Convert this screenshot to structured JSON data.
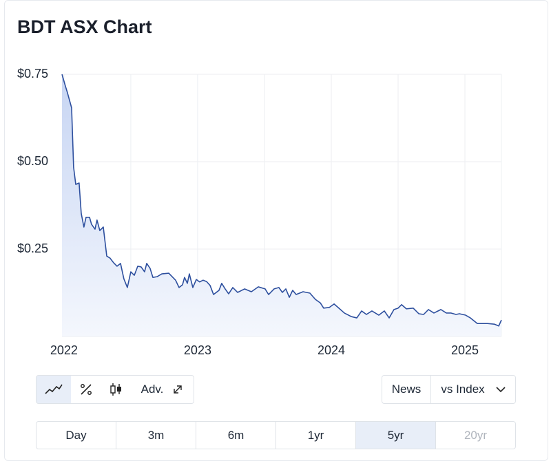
{
  "chart_data": {
    "type": "line",
    "title": "BDT ASX Chart",
    "x": [
      2021.985,
      2022.01,
      2022.026,
      2022.057,
      2022.072,
      2022.088,
      2022.113,
      2022.129,
      2022.149,
      2022.165,
      2022.191,
      2022.206,
      2022.232,
      2022.247,
      2022.268,
      2022.294,
      2022.32,
      2022.345,
      2022.371,
      2022.397,
      2022.423,
      2022.448,
      2022.474,
      2022.5,
      2022.526,
      2022.552,
      2022.577,
      2022.603,
      2022.619,
      2022.644,
      2022.665,
      2022.696,
      2022.732,
      2022.784,
      2022.835,
      2022.861,
      2022.887,
      2022.902,
      2022.923,
      2022.938,
      2022.964,
      2022.99,
      2023.015,
      2023.041,
      2023.067,
      2023.093,
      2023.119,
      2023.16,
      2023.18,
      2023.206,
      2023.232,
      2023.263,
      2023.299,
      2023.351,
      2023.402,
      2023.454,
      2023.505,
      2023.531,
      2023.572,
      2023.608,
      2023.634,
      2023.66,
      2023.686,
      2023.711,
      2023.737,
      2023.789,
      2023.84,
      2023.881,
      2023.918,
      2023.943,
      2023.985,
      2024.021,
      2024.057,
      2024.098,
      2024.149,
      2024.191,
      2024.227,
      2024.263,
      2024.304,
      2024.356,
      2024.397,
      2024.433,
      2024.469,
      2024.5,
      2024.526,
      2024.562,
      2024.613,
      2024.655,
      2024.691,
      2024.727,
      2024.768,
      2024.82,
      2024.861,
      2024.897,
      2024.933,
      2024.959,
      2025.005,
      2025.041,
      2025.093,
      2025.17,
      2025.222,
      2025.253,
      2025.273
    ],
    "values": [
      0.75,
      0.717,
      0.697,
      0.654,
      0.484,
      0.435,
      0.439,
      0.352,
      0.313,
      0.341,
      0.341,
      0.321,
      0.307,
      0.333,
      0.303,
      0.313,
      0.23,
      0.224,
      0.211,
      0.201,
      0.209,
      0.165,
      0.14,
      0.185,
      0.175,
      0.201,
      0.199,
      0.185,
      0.209,
      0.195,
      0.169,
      0.171,
      0.179,
      0.181,
      0.161,
      0.14,
      0.148,
      0.169,
      0.152,
      0.179,
      0.14,
      0.163,
      0.156,
      0.161,
      0.157,
      0.146,
      0.12,
      0.132,
      0.152,
      0.136,
      0.122,
      0.14,
      0.126,
      0.136,
      0.128,
      0.142,
      0.136,
      0.12,
      0.136,
      0.14,
      0.126,
      0.136,
      0.112,
      0.132,
      0.12,
      0.128,
      0.124,
      0.106,
      0.096,
      0.081,
      0.083,
      0.093,
      0.081,
      0.067,
      0.057,
      0.053,
      0.073,
      0.063,
      0.073,
      0.061,
      0.073,
      0.053,
      0.077,
      0.081,
      0.091,
      0.079,
      0.081,
      0.065,
      0.063,
      0.077,
      0.067,
      0.077,
      0.067,
      0.067,
      0.063,
      0.065,
      0.061,
      0.053,
      0.037,
      0.037,
      0.035,
      0.03,
      0.047
    ],
    "color": "#2d4f9e",
    "xlim": [
      2021.985,
      2025.273
    ],
    "xticks": [
      2022,
      2023,
      2024,
      2025
    ],
    "x_minor_grid": [
      2022.5,
      2023.5,
      2024.5
    ],
    "ylim": [
      0,
      0.75
    ],
    "yticks": [
      {
        "value": 0.25,
        "label": "$0.25"
      },
      {
        "value": 0.5,
        "label": "$0.50"
      },
      {
        "value": 0.75,
        "label": "$0.75"
      }
    ],
    "grid": true
  },
  "controls": {
    "advanced": "Adv.",
    "news": "News",
    "compare": "vs Index"
  },
  "ranges": {
    "options": [
      "Day",
      "3m",
      "6m",
      "1yr",
      "5yr",
      "20yr"
    ],
    "selected_index": 4,
    "disabled_index": 5
  }
}
